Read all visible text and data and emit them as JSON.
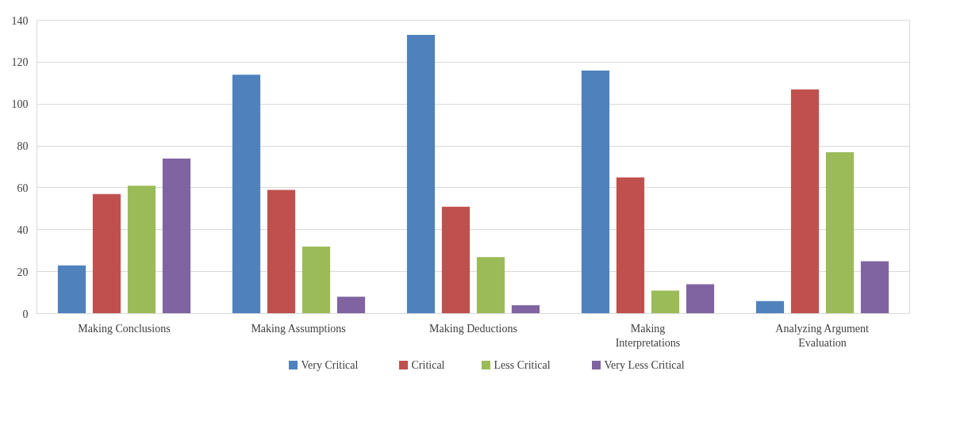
{
  "chart_data": {
    "type": "bar",
    "categories": [
      "Making Conclusions",
      "Making Assumptions",
      "Making Deductions",
      "Making\nInterpretations",
      "Analyzing Argument\nEvaluation"
    ],
    "series": [
      {
        "name": "Very Critical",
        "color": "#4f81bd",
        "values": [
          23,
          114,
          133,
          116,
          6
        ]
      },
      {
        "name": "Critical",
        "color": "#c0504d",
        "values": [
          57,
          59,
          51,
          65,
          107
        ]
      },
      {
        "name": "Less Critical",
        "color": "#9bbb59",
        "values": [
          61,
          32,
          27,
          11,
          77
        ]
      },
      {
        "name": "Very Less Critical",
        "color": "#8064a2",
        "values": [
          74,
          8,
          4,
          14,
          25
        ]
      }
    ],
    "ylim": [
      0,
      140
    ],
    "yticks": [
      0,
      20,
      40,
      60,
      80,
      100,
      120,
      140
    ],
    "grid": "y",
    "legend": "bottom"
  }
}
